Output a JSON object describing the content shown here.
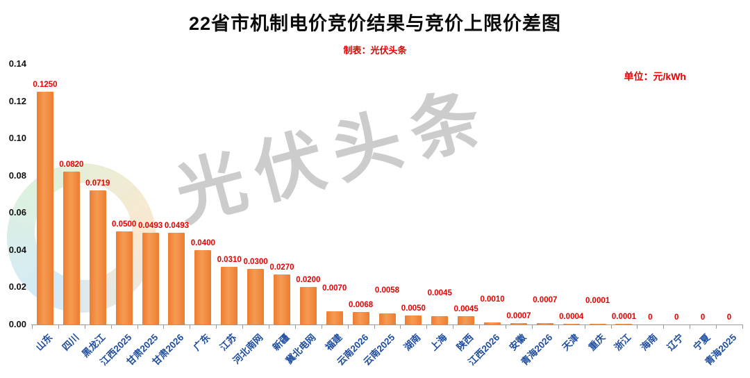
{
  "header": {
    "title": "22省市机制电价竞价结果与竞价上限价差图",
    "subtitle": "制表：光伏头条",
    "unit_label": "单位：元/kWh"
  },
  "watermark": {
    "text": "光伏头条",
    "logo": "pv-toutiao-circle-logo"
  },
  "chart_data": {
    "type": "bar",
    "title": "22省市机制电价竞价结果与竞价上限价差图",
    "subtitle": "制表：光伏头条",
    "unit": "元/kWh",
    "categories": [
      "山东",
      "四川",
      "黑龙江",
      "江西2025",
      "甘肃2025",
      "甘肃2026",
      "广东",
      "江苏",
      "河北南网",
      "新疆",
      "冀北电网",
      "福建",
      "云南2026",
      "云南2025",
      "湖南",
      "上海",
      "陕西",
      "江西2026",
      "安徽",
      "青海2026",
      "天津",
      "重庆",
      "浙江",
      "海南",
      "辽宁",
      "宁夏",
      "青海2025"
    ],
    "values": [
      0.125,
      0.082,
      0.0719,
      0.05,
      0.0493,
      0.0493,
      0.04,
      0.031,
      0.03,
      0.027,
      0.02,
      0.007,
      0.0068,
      0.0058,
      0.005,
      0.0045,
      0.0045,
      0.001,
      0.0007,
      0.0007,
      0.0004,
      0.0001,
      0.0001,
      0,
      0,
      0,
      0
    ],
    "value_labels": [
      "0.1250",
      "0.0820",
      "0.0719",
      "0.0500",
      "0.0493",
      "0.0493",
      "0.0400",
      "0.0310",
      "0.0300",
      "0.0270",
      "0.0200",
      "0.0070",
      "0.0068",
      "0.0058",
      "0.0050",
      "0.0045",
      "0.0045",
      "0.0010",
      "0.0007",
      "0.0007",
      "0.0004",
      "0.0001",
      "0.0001",
      "0",
      "0",
      "0",
      "0"
    ],
    "xlabel": "",
    "ylabel": "",
    "ylim": [
      0,
      0.14
    ],
    "yticks": [
      "0.14",
      "0.12",
      "0.10",
      "0.08",
      "0.06",
      "0.04",
      "0.02",
      "0.00"
    ],
    "grid": false,
    "legend": false,
    "bar_color": "#ED7D31",
    "bar_color_light": "#F59B52",
    "value_label_color": "#E60000",
    "category_label_color": "#1F4E9F",
    "axis_color": "#9A9A9A"
  }
}
